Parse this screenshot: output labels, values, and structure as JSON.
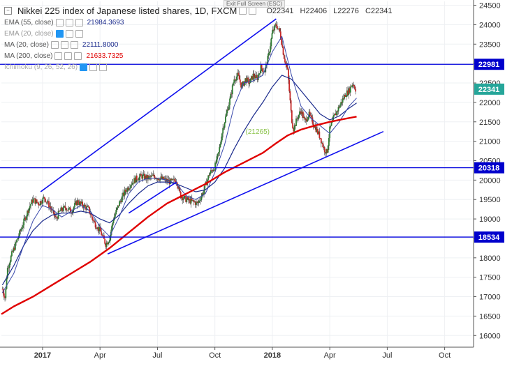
{
  "header": {
    "title": "Nikkei 225 index of Japanese listed shares, 1D, FXCM",
    "collapse_glyph": "−",
    "exit_fullscreen": "Exit Full Screen (ESC)",
    "ohlc": {
      "o": "O22341",
      "h": "H22406",
      "l": "L22276",
      "c": "C22341"
    }
  },
  "indicators": [
    {
      "name": "EMA (55, close)",
      "value": "21984.3693",
      "color": "#1a2a8c"
    },
    {
      "name": "EMA (20, close)",
      "value": "",
      "color": "#888888"
    },
    {
      "name": "MA (20, close)",
      "value": "22111.8000",
      "color": "#1a2a8c"
    },
    {
      "name": "MA (200, close)",
      "value": "21633.7325",
      "color": "#e00000"
    },
    {
      "name": "Ichimoku (9, 26, 52, 26)",
      "value": "",
      "color": "#888888"
    }
  ],
  "chart_data": {
    "type": "candlestick",
    "title": "Nikkei 225 index of Japanese listed shares, 1D, FXCM",
    "ylim": [
      15700,
      24600
    ],
    "y_ticks": [
      16000,
      16500,
      17000,
      17500,
      18000,
      18500,
      19000,
      19500,
      20000,
      20500,
      21000,
      21500,
      22000,
      22500,
      23000,
      23500,
      24000,
      24500
    ],
    "x_ticks": [
      {
        "label": "2017",
        "t": 0.0,
        "bold": true
      },
      {
        "label": "Apr",
        "t": 3.0,
        "bold": false
      },
      {
        "label": "Jul",
        "t": 6.0,
        "bold": false
      },
      {
        "label": "Oct",
        "t": 9.0,
        "bold": false
      },
      {
        "label": "2018",
        "t": 12.0,
        "bold": true
      },
      {
        "label": "Apr",
        "t": 15.0,
        "bold": false
      },
      {
        "label": "Jul",
        "t": 18.0,
        "bold": false
      },
      {
        "label": "Oct",
        "t": 21.0,
        "bold": false
      }
    ],
    "x_range_months": [
      -2.15,
      22.4
    ],
    "price_path": [
      [
        -2.1,
        17200
      ],
      [
        -1.95,
        16950
      ],
      [
        -1.85,
        17700
      ],
      [
        -1.6,
        18100
      ],
      [
        -1.3,
        18500
      ],
      [
        -1.0,
        18900
      ],
      [
        -0.7,
        19300
      ],
      [
        -0.5,
        19500
      ],
      [
        -0.2,
        19400
      ],
      [
        0.1,
        19550
      ],
      [
        0.4,
        19300
      ],
      [
        0.7,
        19000
      ],
      [
        0.9,
        19200
      ],
      [
        1.2,
        19300
      ],
      [
        1.5,
        19200
      ],
      [
        1.8,
        19450
      ],
      [
        2.1,
        19350
      ],
      [
        2.4,
        19250
      ],
      [
        2.7,
        18900
      ],
      [
        3.0,
        18700
      ],
      [
        3.3,
        18350
      ],
      [
        3.5,
        18500
      ],
      [
        3.7,
        19000
      ],
      [
        4.0,
        19400
      ],
      [
        4.3,
        19700
      ],
      [
        4.6,
        19900
      ],
      [
        4.9,
        20050
      ],
      [
        5.2,
        20100
      ],
      [
        5.5,
        20050
      ],
      [
        5.8,
        20100
      ],
      [
        6.1,
        20050
      ],
      [
        6.4,
        20000
      ],
      [
        6.7,
        19950
      ],
      [
        7.0,
        20000
      ],
      [
        7.2,
        19600
      ],
      [
        7.5,
        19500
      ],
      [
        7.8,
        19450
      ],
      [
        8.1,
        19400
      ],
      [
        8.4,
        19700
      ],
      [
        8.7,
        20150
      ],
      [
        9.0,
        20350
      ],
      [
        9.2,
        20700
      ],
      [
        9.4,
        21300
      ],
      [
        9.6,
        21700
      ],
      [
        9.8,
        22100
      ],
      [
        10.0,
        22600
      ],
      [
        10.2,
        22700
      ],
      [
        10.4,
        22400
      ],
      [
        10.6,
        22600
      ],
      [
        10.8,
        22500
      ],
      [
        11.0,
        22700
      ],
      [
        11.2,
        22600
      ],
      [
        11.4,
        22900
      ],
      [
        11.6,
        22800
      ],
      [
        11.8,
        23200
      ],
      [
        12.0,
        23800
      ],
      [
        12.2,
        24000
      ],
      [
        12.4,
        23800
      ],
      [
        12.6,
        23200
      ],
      [
        12.8,
        22800
      ],
      [
        13.0,
        21600
      ],
      [
        13.1,
        21300
      ],
      [
        13.3,
        21600
      ],
      [
        13.5,
        21800
      ],
      [
        13.7,
        21500
      ],
      [
        13.9,
        21700
      ],
      [
        14.1,
        21500
      ],
      [
        14.3,
        21300
      ],
      [
        14.5,
        21100
      ],
      [
        14.7,
        20800
      ],
      [
        14.85,
        20700
      ],
      [
        15.0,
        21300
      ],
      [
        15.2,
        21600
      ],
      [
        15.4,
        21800
      ],
      [
        15.6,
        22000
      ],
      [
        15.8,
        22200
      ],
      [
        16.0,
        22300
      ],
      [
        16.2,
        22500
      ],
      [
        16.35,
        22341
      ]
    ],
    "ma200_path": [
      [
        -2.15,
        16550
      ],
      [
        -1.5,
        16750
      ],
      [
        -0.5,
        17000
      ],
      [
        0.5,
        17300
      ],
      [
        1.5,
        17600
      ],
      [
        2.5,
        17900
      ],
      [
        3.5,
        18250
      ],
      [
        4.5,
        18650
      ],
      [
        5.5,
        19050
      ],
      [
        6.5,
        19400
      ],
      [
        7.5,
        19650
      ],
      [
        8.5,
        19900
      ],
      [
        9.5,
        20200
      ],
      [
        10.5,
        20450
      ],
      [
        11.5,
        20700
      ],
      [
        12.2,
        20950
      ],
      [
        12.8,
        21150
      ],
      [
        13.5,
        21300
      ],
      [
        14.2,
        21400
      ],
      [
        15.0,
        21500
      ],
      [
        15.6,
        21560
      ],
      [
        16.4,
        21634
      ]
    ],
    "ema55_path": [
      [
        -2.1,
        17300
      ],
      [
        -1.5,
        17800
      ],
      [
        -1.0,
        18300
      ],
      [
        -0.5,
        18700
      ],
      [
        0.0,
        18950
      ],
      [
        0.5,
        19100
      ],
      [
        1.0,
        19150
      ],
      [
        1.5,
        19150
      ],
      [
        2.0,
        19200
      ],
      [
        2.5,
        19150
      ],
      [
        3.0,
        19000
      ],
      [
        3.5,
        18900
      ],
      [
        4.0,
        19100
      ],
      [
        4.5,
        19400
      ],
      [
        5.0,
        19650
      ],
      [
        5.5,
        19850
      ],
      [
        6.0,
        19950
      ],
      [
        6.5,
        19950
      ],
      [
        7.0,
        19900
      ],
      [
        7.5,
        19800
      ],
      [
        8.0,
        19700
      ],
      [
        8.5,
        19750
      ],
      [
        9.0,
        19950
      ],
      [
        9.5,
        20300
      ],
      [
        10.0,
        20800
      ],
      [
        10.5,
        21250
      ],
      [
        11.0,
        21650
      ],
      [
        11.5,
        22000
      ],
      [
        12.0,
        22400
      ],
      [
        12.5,
        22700
      ],
      [
        13.0,
        22600
      ],
      [
        13.5,
        22300
      ],
      [
        14.0,
        22000
      ],
      [
        14.5,
        21700
      ],
      [
        15.0,
        21550
      ],
      [
        15.5,
        21650
      ],
      [
        16.0,
        21850
      ],
      [
        16.4,
        21984
      ]
    ],
    "ma20_path": [
      [
        -2.1,
        17100
      ],
      [
        -1.5,
        17600
      ],
      [
        -1.0,
        18300
      ],
      [
        -0.5,
        18950
      ],
      [
        0.0,
        19350
      ],
      [
        0.5,
        19250
      ],
      [
        1.0,
        19050
      ],
      [
        1.5,
        19200
      ],
      [
        2.0,
        19350
      ],
      [
        2.5,
        19200
      ],
      [
        3.0,
        18800
      ],
      [
        3.5,
        18550
      ],
      [
        4.0,
        19050
      ],
      [
        4.5,
        19650
      ],
      [
        5.0,
        19950
      ],
      [
        5.5,
        20050
      ],
      [
        6.0,
        20050
      ],
      [
        6.5,
        20000
      ],
      [
        7.0,
        19900
      ],
      [
        7.5,
        19600
      ],
      [
        8.0,
        19500
      ],
      [
        8.5,
        19650
      ],
      [
        9.0,
        20200
      ],
      [
        9.5,
        20900
      ],
      [
        10.0,
        21900
      ],
      [
        10.5,
        22500
      ],
      [
        11.0,
        22550
      ],
      [
        11.5,
        22700
      ],
      [
        12.0,
        23300
      ],
      [
        12.5,
        23700
      ],
      [
        13.0,
        22700
      ],
      [
        13.5,
        21900
      ],
      [
        14.0,
        21600
      ],
      [
        14.5,
        21400
      ],
      [
        15.0,
        21200
      ],
      [
        15.5,
        21500
      ],
      [
        16.0,
        21900
      ],
      [
        16.4,
        22112
      ]
    ],
    "horizontal_levels": [
      {
        "value": 22981,
        "label": "22981"
      },
      {
        "value": 20318,
        "label": "20318"
      },
      {
        "value": 18534,
        "label": "18534"
      }
    ],
    "current_price": {
      "value": 22341,
      "label": "22341"
    },
    "trendlines": [
      {
        "from": [
          -0.1,
          19700
        ],
        "to": [
          12.2,
          24150
        ]
      },
      {
        "from": [
          3.4,
          18100
        ],
        "to": [
          17.8,
          21250
        ]
      },
      {
        "from": [
          4.5,
          19150
        ],
        "to": [
          7.0,
          19950
        ]
      }
    ],
    "annotation": {
      "text": "(21265)",
      "at": [
        10.6,
        21265
      ]
    }
  }
}
